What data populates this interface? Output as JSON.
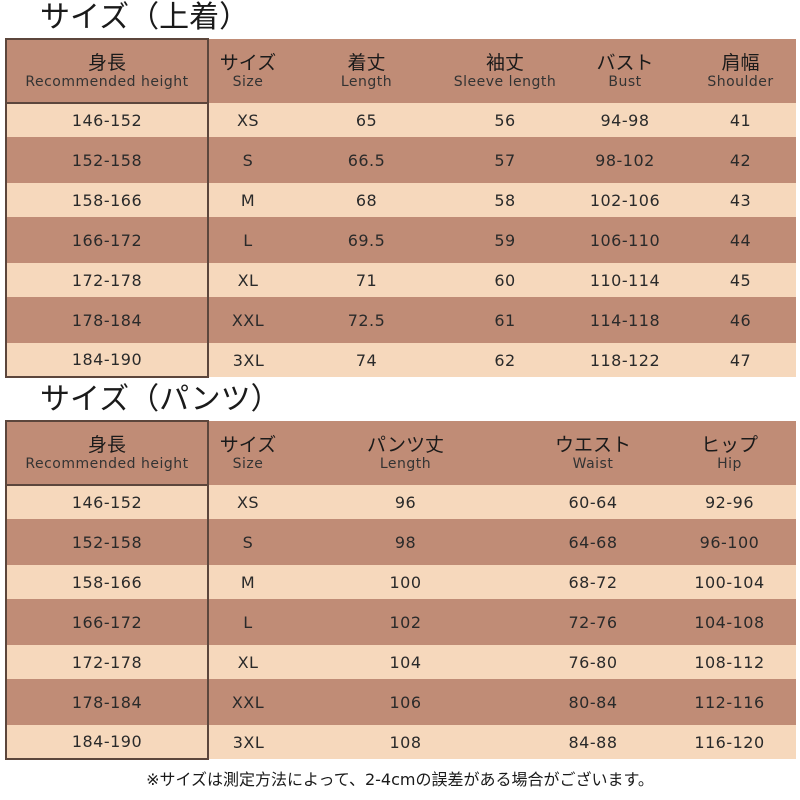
{
  "tops": {
    "title": "サイズ（上着）",
    "headers": [
      {
        "jp": "身長",
        "en": "Recommended height"
      },
      {
        "jp": "サイズ",
        "en": "Size"
      },
      {
        "jp": "着丈",
        "en": "Length"
      },
      {
        "jp": "袖丈",
        "en": "Sleeve length"
      },
      {
        "jp": "バスト",
        "en": "Bust"
      },
      {
        "jp": "肩幅",
        "en": "Shoulder"
      }
    ],
    "rows": [
      [
        "146-152",
        "XS",
        "65",
        "56",
        "94-98",
        "41"
      ],
      [
        "152-158",
        "S",
        "66.5",
        "57",
        "98-102",
        "42"
      ],
      [
        "158-166",
        "M",
        "68",
        "58",
        "102-106",
        "43"
      ],
      [
        "166-172",
        "L",
        "69.5",
        "59",
        "106-110",
        "44"
      ],
      [
        "172-178",
        "XL",
        "71",
        "60",
        "110-114",
        "45"
      ],
      [
        "178-184",
        "XXL",
        "72.5",
        "61",
        "114-118",
        "46"
      ],
      [
        "184-190",
        "3XL",
        "74",
        "62",
        "118-122",
        "47"
      ]
    ]
  },
  "pants": {
    "title": "サイズ（パンツ）",
    "headers": [
      {
        "jp": "身長",
        "en": "Recommended height"
      },
      {
        "jp": "サイズ",
        "en": "Size"
      },
      {
        "jp": "パンツ丈",
        "en": "Length"
      },
      {
        "jp": "ウエスト",
        "en": "Waist"
      },
      {
        "jp": "ヒップ",
        "en": "Hip"
      }
    ],
    "rows": [
      [
        "146-152",
        "XS",
        "96",
        "60-64",
        "92-96"
      ],
      [
        "152-158",
        "S",
        "98",
        "64-68",
        "96-100"
      ],
      [
        "158-166",
        "M",
        "100",
        "68-72",
        "100-104"
      ],
      [
        "166-172",
        "L",
        "102",
        "72-76",
        "104-108"
      ],
      [
        "172-178",
        "XL",
        "104",
        "76-80",
        "108-112"
      ],
      [
        "178-184",
        "XXL",
        "106",
        "80-84",
        "112-116"
      ],
      [
        "184-190",
        "3XL",
        "108",
        "84-88",
        "116-120"
      ]
    ]
  },
  "footnote": "※サイズは測定方法によって、2-4cmの誤差がある場合がございます。",
  "colors": {
    "header_band": "#c08c76",
    "light_row": "#f6d8bc",
    "dark_row": "#c08c76",
    "border": "#5c463c"
  }
}
